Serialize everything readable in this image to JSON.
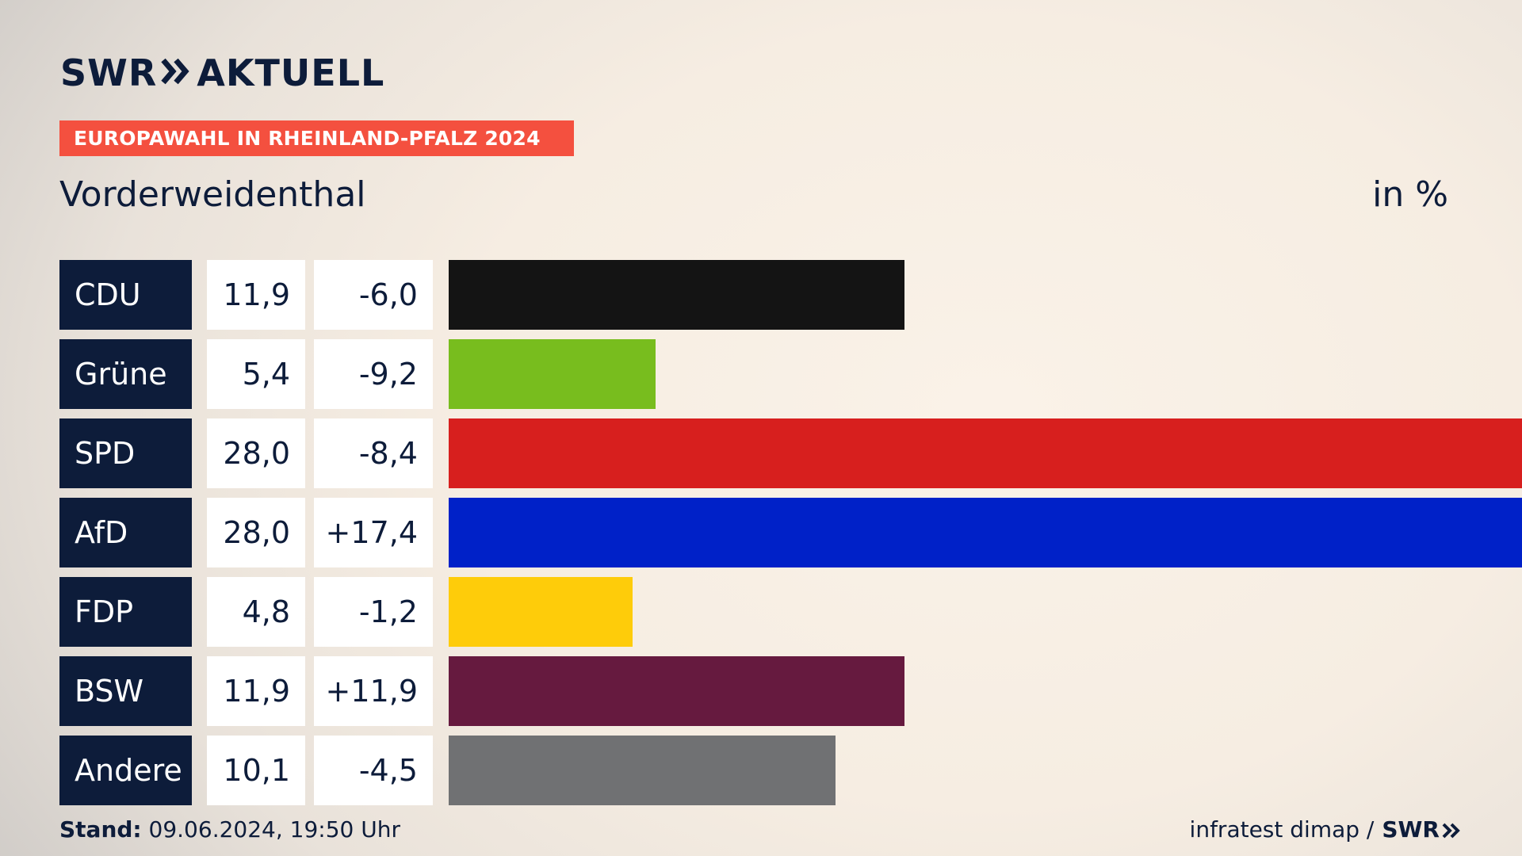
{
  "header": {
    "logo_text": "SWR",
    "logo_suffix": "AKTUELL",
    "banner": "EUROPAWAHL IN RHEINLAND-PFALZ 2024",
    "banner_color": "#f4503f",
    "place": "Vorderweidenthal",
    "unit": "in %"
  },
  "chart_data": {
    "type": "bar",
    "orientation": "horizontal",
    "xlim": [
      0,
      28.0
    ],
    "categories": [
      "CDU",
      "Grüne",
      "SPD",
      "AfD",
      "FDP",
      "BSW",
      "Andere"
    ],
    "values": [
      11.9,
      5.4,
      28.0,
      28.0,
      4.8,
      11.9,
      10.1
    ],
    "value_labels": [
      "11,9",
      "5,4",
      "28,0",
      "28,0",
      "4,8",
      "11,9",
      "10,1"
    ],
    "diff_labels": [
      "-6,0",
      "-9,2",
      "-8,4",
      "+17,4",
      "-1,2",
      "+11,9",
      "-4,5"
    ],
    "colors": [
      "#141414",
      "#78bd1e",
      "#d71f1e",
      "#0021c8",
      "#fecc0a",
      "#661a3f",
      "#707173"
    ]
  },
  "footer": {
    "stand_label": "Stand:",
    "stand_value": "09.06.2024, 19:50 Uhr",
    "source": "infratest dimap /",
    "source_logo": "SWR"
  }
}
